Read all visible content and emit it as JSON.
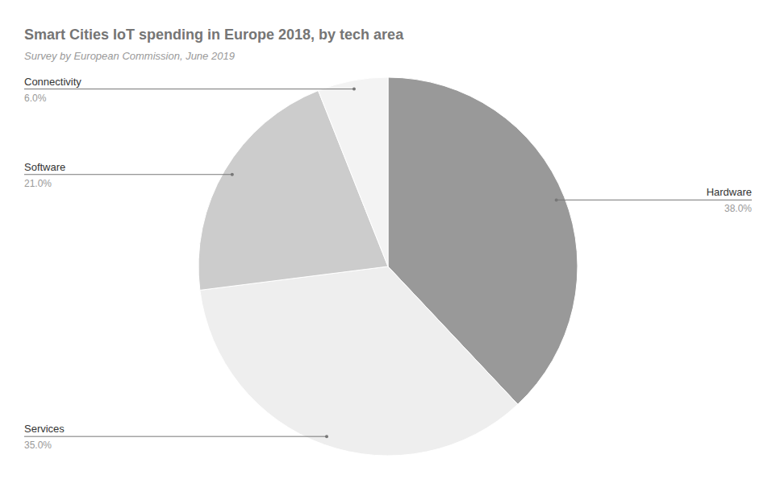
{
  "chart_data": {
    "type": "pie",
    "title": "Smart Cities IoT spending in Europe 2018, by tech area",
    "subtitle": "Survey by European Commission, June 2019",
    "categories": [
      "Hardware",
      "Services",
      "Software",
      "Connectivity"
    ],
    "values": [
      38,
      35,
      21,
      6
    ],
    "value_labels": [
      "38.0%",
      "35.0%",
      "21.0%",
      "6.0%"
    ],
    "colors": [
      "#999999",
      "#eeeeee",
      "#cccccc",
      "#f3f3f3"
    ],
    "data_labels": true
  }
}
